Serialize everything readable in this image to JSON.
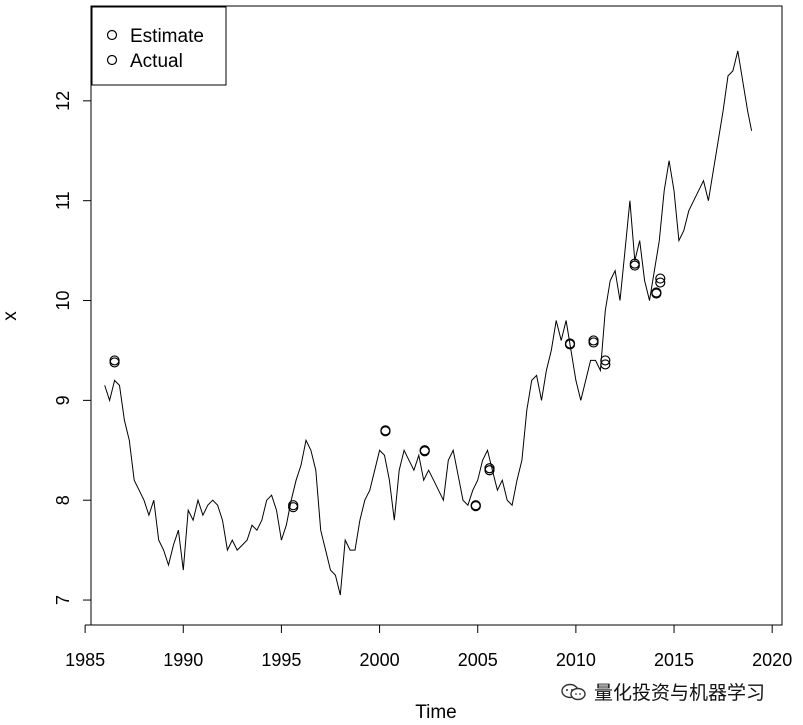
{
  "chart_data": {
    "type": "line",
    "title": "",
    "xlabel": "Time",
    "ylabel": "x",
    "xlim": [
      1985.3,
      2020.5
    ],
    "ylim": [
      6.75,
      12.95
    ],
    "x_ticks": [
      "1985",
      "1990",
      "1995",
      "2000",
      "2005",
      "2010",
      "2015",
      "2020"
    ],
    "y_ticks": [
      "7",
      "8",
      "9",
      "10",
      "11",
      "12"
    ],
    "legend": {
      "position": "top-left",
      "entries": [
        "Estimate",
        "Actual"
      ]
    },
    "series": [
      {
        "name": "Actual",
        "kind": "line",
        "x": [
          1986.0,
          1986.25,
          1986.5,
          1986.75,
          1987.0,
          1987.25,
          1987.5,
          1987.75,
          1988.0,
          1988.25,
          1988.5,
          1988.75,
          1989.0,
          1989.25,
          1989.5,
          1989.75,
          1990.0,
          1990.25,
          1990.5,
          1990.75,
          1991.0,
          1991.25,
          1991.5,
          1991.75,
          1992.0,
          1992.25,
          1992.5,
          1992.75,
          1993.0,
          1993.25,
          1993.5,
          1993.75,
          1994.0,
          1994.25,
          1994.5,
          1994.75,
          1995.0,
          1995.25,
          1995.5,
          1995.75,
          1996.0,
          1996.25,
          1996.5,
          1996.75,
          1997.0,
          1997.25,
          1997.5,
          1997.75,
          1998.0,
          1998.25,
          1998.5,
          1998.75,
          1999.0,
          1999.25,
          1999.5,
          1999.75,
          2000.0,
          2000.25,
          2000.5,
          2000.75,
          2001.0,
          2001.25,
          2001.5,
          2001.75,
          2002.0,
          2002.25,
          2002.5,
          2002.75,
          2003.0,
          2003.25,
          2003.5,
          2003.75,
          2004.0,
          2004.25,
          2004.5,
          2004.75,
          2005.0,
          2005.25,
          2005.5,
          2005.75,
          2006.0,
          2006.25,
          2006.5,
          2006.75,
          2007.0,
          2007.25,
          2007.5,
          2007.75,
          2008.0,
          2008.25,
          2008.5,
          2008.75,
          2009.0,
          2009.25,
          2009.5,
          2009.75,
          2010.0,
          2010.25,
          2010.5,
          2010.75,
          2011.0,
          2011.25,
          2011.5,
          2011.75,
          2012.0,
          2012.25,
          2012.5,
          2012.75,
          2013.0,
          2013.25,
          2013.5,
          2013.75,
          2014.0,
          2014.25,
          2014.5,
          2014.75,
          2015.0,
          2015.25,
          2015.5,
          2015.75,
          2016.0,
          2016.25,
          2016.5,
          2016.75,
          2017.0,
          2017.25,
          2017.5,
          2017.75,
          2018.0,
          2018.25,
          2018.5,
          2018.75,
          2018.95
        ],
        "y": [
          9.15,
          9.0,
          9.2,
          9.15,
          8.8,
          8.6,
          8.2,
          8.1,
          8.0,
          7.85,
          8.0,
          7.6,
          7.5,
          7.35,
          7.55,
          7.7,
          7.3,
          7.9,
          7.8,
          8.0,
          7.85,
          7.95,
          8.0,
          7.95,
          7.8,
          7.5,
          7.6,
          7.5,
          7.55,
          7.6,
          7.75,
          7.7,
          7.8,
          8.0,
          8.05,
          7.9,
          7.6,
          7.75,
          8.0,
          8.2,
          8.35,
          8.6,
          8.5,
          8.3,
          7.7,
          7.5,
          7.3,
          7.25,
          7.05,
          7.6,
          7.5,
          7.5,
          7.8,
          8.0,
          8.1,
          8.3,
          8.5,
          8.45,
          8.2,
          7.8,
          8.3,
          8.5,
          8.4,
          8.3,
          8.45,
          8.2,
          8.3,
          8.2,
          8.1,
          8.0,
          8.4,
          8.5,
          8.25,
          8.0,
          7.95,
          8.1,
          8.2,
          8.4,
          8.5,
          8.3,
          8.1,
          8.2,
          8.0,
          7.95,
          8.2,
          8.4,
          8.9,
          9.2,
          9.25,
          9.0,
          9.3,
          9.5,
          9.8,
          9.6,
          9.8,
          9.5,
          9.2,
          9.0,
          9.2,
          9.4,
          9.4,
          9.3,
          9.9,
          10.2,
          10.3,
          10.0,
          10.5,
          11.0,
          10.4,
          10.6,
          10.2,
          10.0,
          10.3,
          10.6,
          11.1,
          11.4,
          11.1,
          10.6,
          10.7,
          10.9,
          11.0,
          11.1,
          11.2,
          11.0,
          11.3,
          11.6,
          11.9,
          12.25,
          12.3,
          12.5,
          12.2,
          11.9,
          11.7
        ]
      },
      {
        "name": "Estimate",
        "kind": "points",
        "x": [
          1986.5,
          1995.6,
          2000.3,
          2002.3,
          2004.9,
          2005.6,
          2009.7,
          2010.9,
          2011.5,
          2013.0,
          2014.1,
          2014.3
        ],
        "y": [
          9.4,
          7.95,
          8.7,
          8.5,
          7.95,
          8.32,
          9.57,
          9.58,
          9.4,
          10.35,
          10.08,
          10.22
        ]
      },
      {
        "name": "Actual",
        "kind": "points",
        "x": [
          1986.5,
          1995.6,
          2000.3,
          2002.3,
          2004.9,
          2005.6,
          2009.7,
          2010.9,
          2011.5,
          2013.0,
          2014.1,
          2014.3
        ],
        "y": [
          9.38,
          7.93,
          8.69,
          8.49,
          7.94,
          8.3,
          9.56,
          9.6,
          9.36,
          10.37,
          10.07,
          10.18
        ]
      }
    ]
  },
  "watermark": {
    "text": "量化投资与机器学习",
    "icon": "wechat-icon"
  }
}
